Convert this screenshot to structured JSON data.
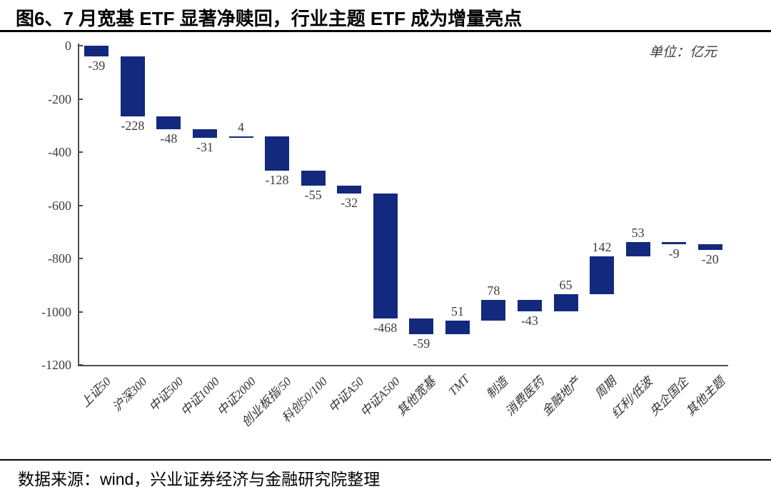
{
  "page": {
    "title": "图6、7 月宽基 ETF 显著净赎回，行业主题 ETF 成为增量亮点",
    "source_note": "数据来源：wind，兴业证券经济与金融研究院整理"
  },
  "chart": {
    "unit_label": "单位：亿元"
  },
  "chart_data": {
    "type": "bar",
    "subtype": "waterfall",
    "title": "图6、7 月宽基 ETF 显著净赎回，行业主题 ETF 成为增量亮点",
    "unit": "亿元",
    "categories": [
      "上证50",
      "沪深300",
      "中证500",
      "中证1000",
      "中证2000",
      "创业板指/50",
      "科创50/100",
      "中证A50",
      "中证A500",
      "其他宽基",
      "TMT",
      "制造",
      "消费医药",
      "金融地产",
      "周期",
      "红利/低波",
      "央企国企",
      "其他主题"
    ],
    "values": [
      -39,
      -228,
      -48,
      -31,
      4,
      -128,
      -55,
      -32,
      -468,
      -59,
      51,
      78,
      -43,
      65,
      142,
      53,
      -9,
      -20
    ],
    "cumulative_end": [
      -39,
      -267,
      -315,
      -346,
      -342,
      -470,
      -525,
      -557,
      -1025,
      -1084,
      -1033,
      -955,
      -998,
      -933,
      -791,
      -738,
      -747,
      -767
    ],
    "xlabel": "",
    "ylabel": "",
    "ylim": [
      -1200,
      0
    ],
    "ytick_step": 200,
    "ytick_labels": [
      "0",
      "-200",
      "-400",
      "-600",
      "-800",
      "-1000",
      "-1200"
    ],
    "bar_color": "#12297E",
    "grid": false,
    "legend": null,
    "value_labels": true
  }
}
